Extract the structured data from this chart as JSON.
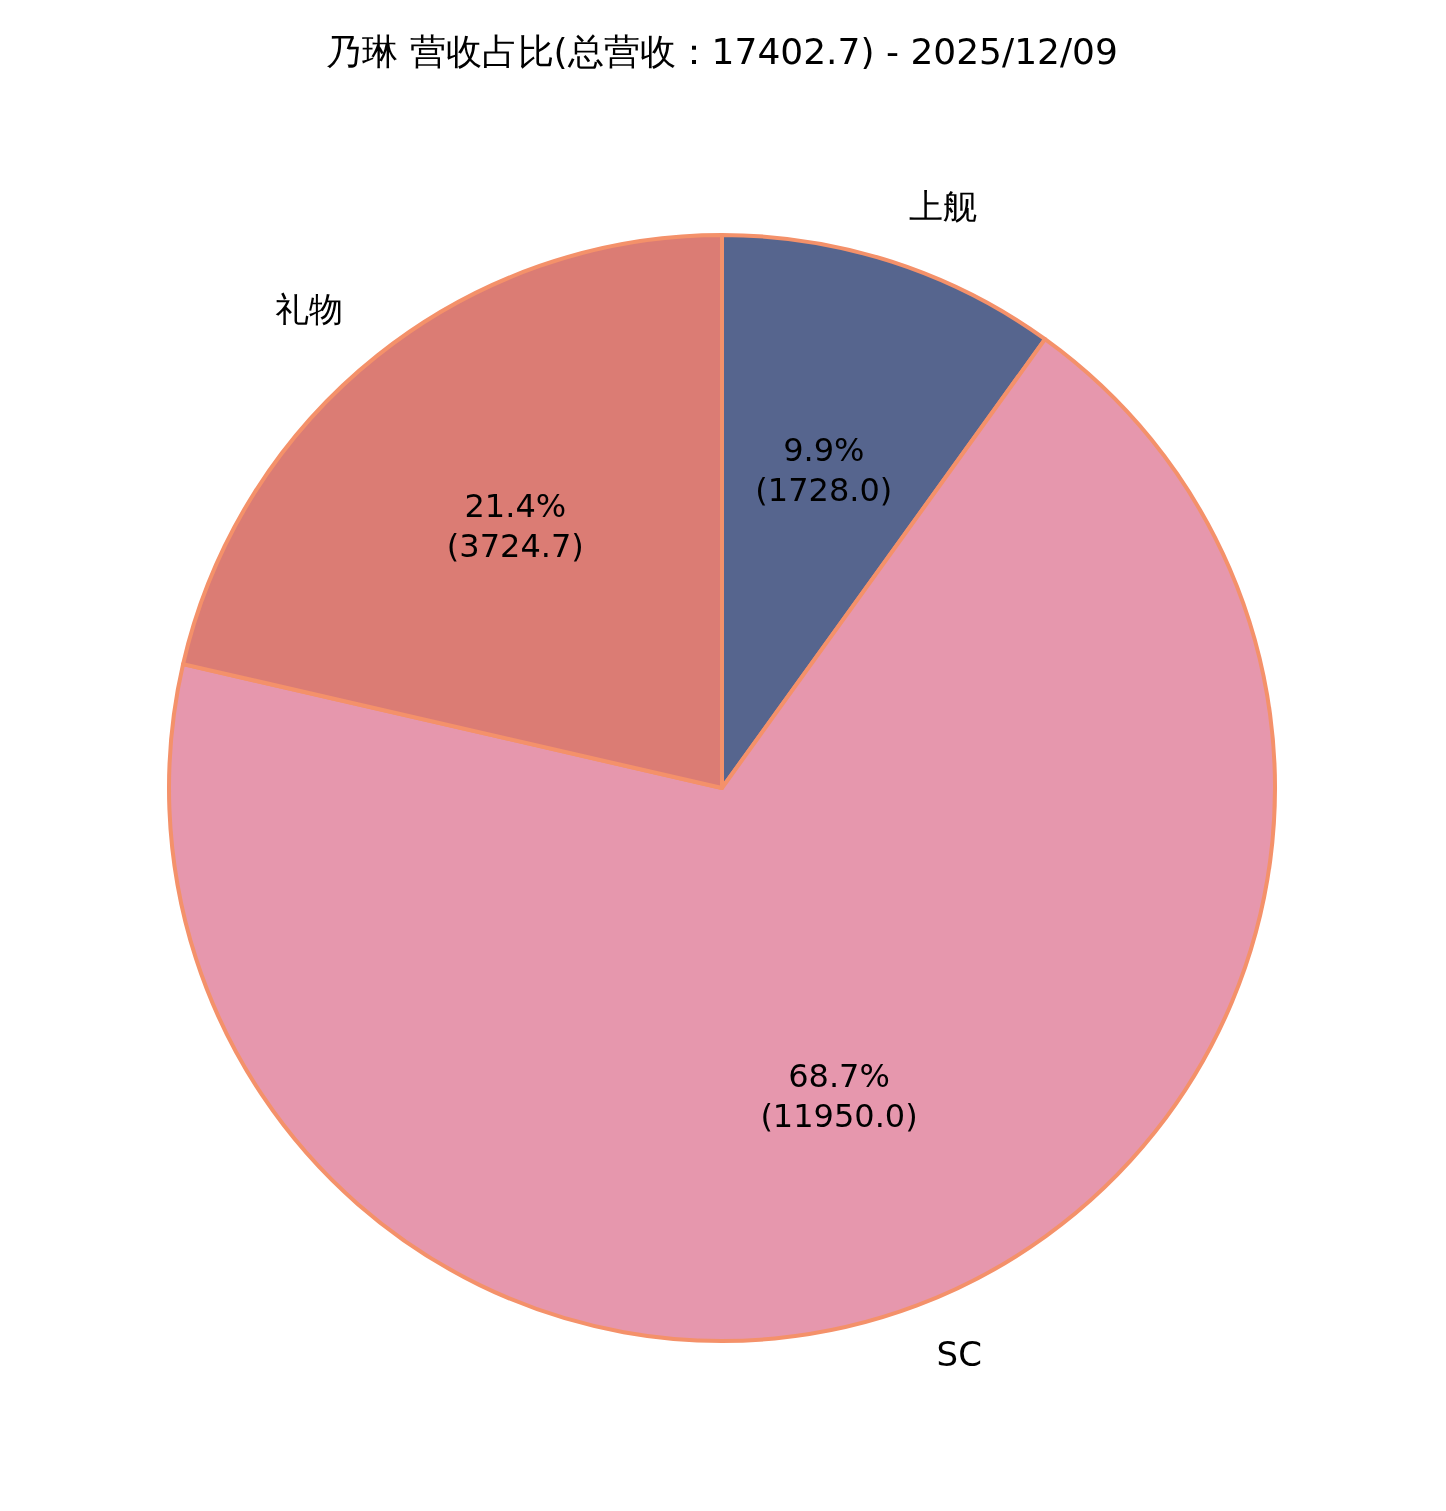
{
  "chart_data": {
    "type": "pie",
    "title": "乃琳 营收占比(总营收：17402.7) - 2025/12/09",
    "categories": [
      "上舰",
      "SC",
      "礼物"
    ],
    "values": [
      1728.0,
      11950.0,
      3724.7
    ],
    "colors": [
      "#56658e",
      "#e697ad",
      "#db7c74"
    ],
    "value_labels": [
      "9.9%\n(1728.0)",
      "68.7%\n(11950.0)",
      "21.4%\n(3724.7)"
    ],
    "legend": false
  }
}
